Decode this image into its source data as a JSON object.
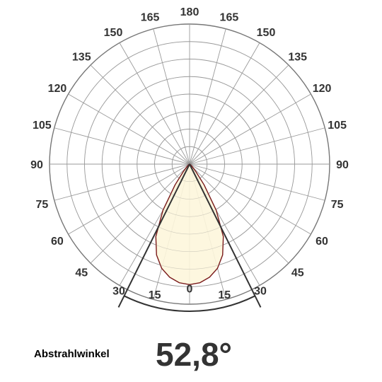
{
  "chart_data": {
    "type": "polar",
    "angle_tick_labels": [
      "0",
      "15",
      "30",
      "45",
      "60",
      "75",
      "90",
      "105",
      "120",
      "135",
      "150",
      "165",
      "180"
    ],
    "angle_ticks_deg": [
      0,
      15,
      30,
      45,
      60,
      75,
      90,
      105,
      120,
      135,
      150,
      165,
      180
    ],
    "radial_rings": 8,
    "spokes_every_deg": 15,
    "grid": true,
    "beam_half_angle_deg": 26.4,
    "beam_angle_arc": true,
    "distribution": {
      "name": "",
      "angles_deg": [
        0,
        5,
        10,
        15,
        20,
        25,
        30,
        35,
        40,
        45,
        50,
        55,
        60,
        65,
        70,
        75,
        80,
        85,
        90
      ],
      "relative_intensity": [
        0.86,
        0.85,
        0.82,
        0.77,
        0.69,
        0.57,
        0.38,
        0.18,
        0.07,
        0.03,
        0.015,
        0.008,
        0.004,
        0.002,
        0.001,
        0.0,
        0.0,
        0.0,
        0.0
      ],
      "fill_color": "#fdf6dc",
      "stroke_color": "#7a1a1a"
    },
    "colors": {
      "grid": "#9a9a9a",
      "outer_circle": "#777777",
      "beam_lines": "#333333"
    }
  },
  "footer": {
    "caption": "Abstrahlwinkel",
    "beam_angle": "52,8°"
  }
}
